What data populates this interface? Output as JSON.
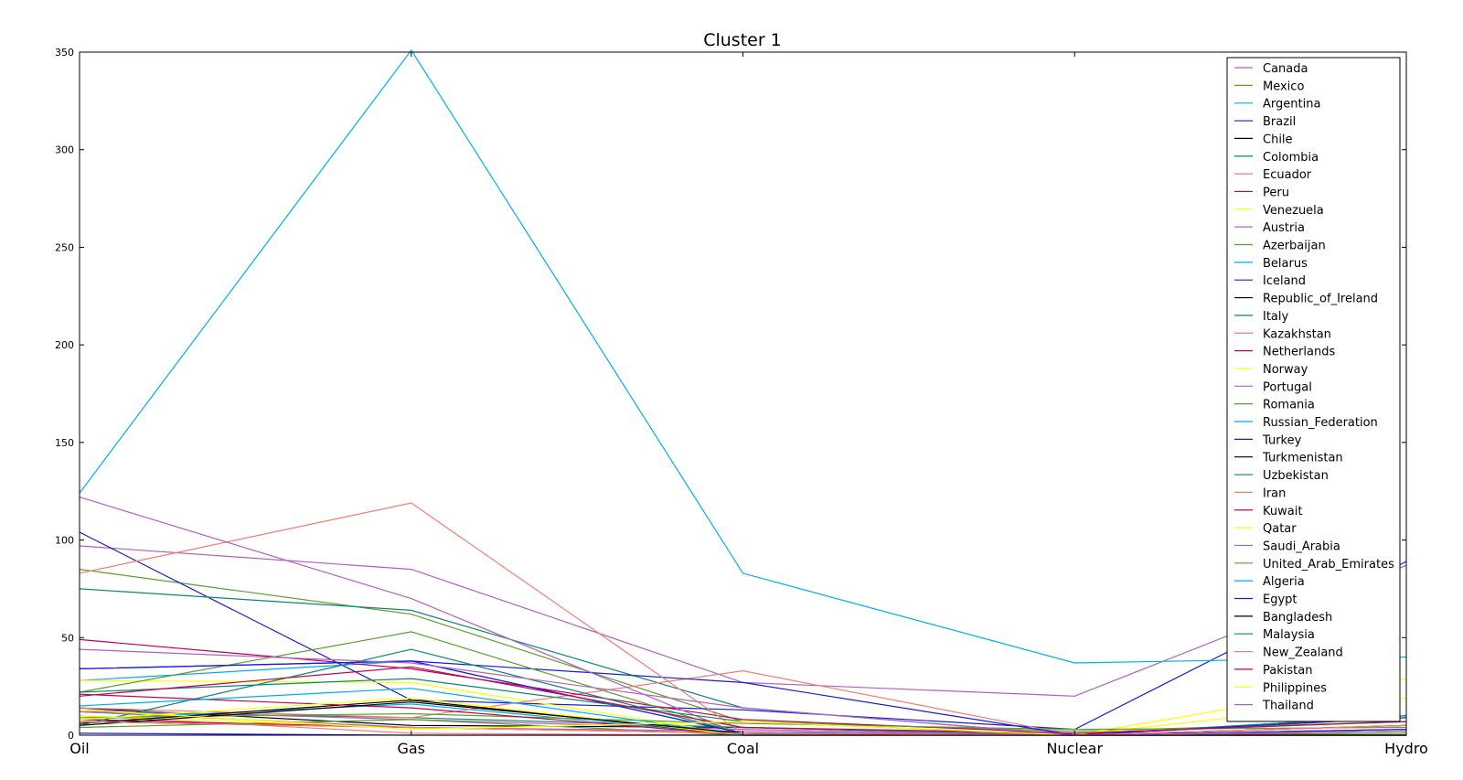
{
  "chart_data": {
    "type": "line",
    "title": "Cluster 1",
    "categories": [
      "Oil",
      "Gas",
      "Coal",
      "Nuclear",
      "Hydro"
    ],
    "ylim": [
      0,
      350
    ],
    "yticks": [
      0,
      50,
      100,
      150,
      200,
      250,
      300,
      350
    ],
    "grid": false,
    "legend_position": "top-right",
    "series": [
      {
        "name": "Canada",
        "color": "#b160c0",
        "values": [
          97,
          85,
          27,
          20,
          87
        ]
      },
      {
        "name": "Mexico",
        "color": "#5aa02c",
        "values": [
          85,
          62,
          7,
          2,
          7
        ]
      },
      {
        "name": "Argentina",
        "color": "#00aeef",
        "values": [
          28,
          38,
          1,
          1,
          7
        ]
      },
      {
        "name": "Brazil",
        "color": "#1a1adb",
        "values": [
          104,
          18,
          13,
          3,
          89
        ]
      },
      {
        "name": "Chile",
        "color": "#000000",
        "values": [
          14,
          5,
          4,
          0,
          5
        ]
      },
      {
        "name": "Colombia",
        "color": "#0c8573",
        "values": [
          12,
          9,
          4,
          0,
          10
        ]
      },
      {
        "name": "Ecuador",
        "color": "#f77b72",
        "values": [
          10,
          1,
          0,
          0,
          3
        ]
      },
      {
        "name": "Peru",
        "color": "#c6004f",
        "values": [
          8,
          4,
          1,
          0,
          5
        ]
      },
      {
        "name": "Venezuela",
        "color": "#ffff00",
        "values": [
          28,
          27,
          0,
          0,
          19
        ]
      },
      {
        "name": "Austria",
        "color": "#b160c0",
        "values": [
          13,
          8,
          3,
          0,
          9
        ]
      },
      {
        "name": "Azerbaijan",
        "color": "#5aa02c",
        "values": [
          4,
          8,
          0,
          0,
          1
        ]
      },
      {
        "name": "Belarus",
        "color": "#00aeef",
        "values": [
          8,
          16,
          0,
          0,
          0
        ]
      },
      {
        "name": "Iceland",
        "color": "#1a1adb",
        "values": [
          1,
          0,
          0,
          0,
          3
        ]
      },
      {
        "name": "Republic_of_Ireland",
        "color": "#000000",
        "values": [
          7,
          4,
          1,
          0,
          0
        ]
      },
      {
        "name": "Italy",
        "color": "#0c8573",
        "values": [
          75,
          64,
          14,
          0,
          10
        ]
      },
      {
        "name": "Kazakhstan",
        "color": "#f77b72",
        "values": [
          14,
          9,
          33,
          0,
          2
        ]
      },
      {
        "name": "Netherlands",
        "color": "#c6004f",
        "values": [
          49,
          34,
          8,
          1,
          0
        ]
      },
      {
        "name": "Norway",
        "color": "#ffff00",
        "values": [
          10,
          4,
          1,
          0,
          29
        ]
      },
      {
        "name": "Portugal",
        "color": "#b160c0",
        "values": [
          12,
          4,
          2,
          0,
          3
        ]
      },
      {
        "name": "Romania",
        "color": "#5aa02c",
        "values": [
          9,
          11,
          6,
          3,
          4
        ]
      },
      {
        "name": "Russian_Federation",
        "color": "#00aeef",
        "values": [
          124,
          351,
          83,
          37,
          40
        ]
      },
      {
        "name": "Turkey",
        "color": "#1a1adb",
        "values": [
          34,
          38,
          27,
          0,
          9
        ]
      },
      {
        "name": "Turkmenistan",
        "color": "#000000",
        "values": [
          6,
          18,
          0,
          0,
          0
        ]
      },
      {
        "name": "Uzbekistan",
        "color": "#0c8573",
        "values": [
          5,
          44,
          1,
          0,
          2
        ]
      },
      {
        "name": "Iran",
        "color": "#f77b72",
        "values": [
          83,
          119,
          1,
          0,
          3
        ]
      },
      {
        "name": "Kuwait",
        "color": "#c6004f",
        "values": [
          21,
          14,
          0,
          0,
          0
        ]
      },
      {
        "name": "Qatar",
        "color": "#ffff00",
        "values": [
          8,
          19,
          0,
          0,
          0
        ]
      },
      {
        "name": "Saudi_Arabia",
        "color": "#b160c0",
        "values": [
          122,
          70,
          0,
          0,
          0
        ]
      },
      {
        "name": "United_Arab_Emirates",
        "color": "#5aa02c",
        "values": [
          22,
          53,
          1,
          0,
          0
        ]
      },
      {
        "name": "Algeria",
        "color": "#00aeef",
        "values": [
          15,
          24,
          0,
          0,
          0
        ]
      },
      {
        "name": "Egypt",
        "color": "#1a1adb",
        "values": [
          34,
          38,
          1,
          0,
          3
        ]
      },
      {
        "name": "Bangladesh",
        "color": "#000000",
        "values": [
          5,
          17,
          1,
          0,
          0
        ]
      },
      {
        "name": "Malaysia",
        "color": "#0c8573",
        "values": [
          22,
          29,
          7,
          0,
          2
        ]
      },
      {
        "name": "New_Zealand",
        "color": "#f77b72",
        "values": [
          7,
          4,
          1,
          0,
          5
        ]
      },
      {
        "name": "Pakistan",
        "color": "#c6004f",
        "values": [
          20,
          35,
          4,
          1,
          7
        ]
      },
      {
        "name": "Philippines",
        "color": "#ffff00",
        "values": [
          13,
          3,
          7,
          0,
          2
        ]
      },
      {
        "name": "Thailand",
        "color": "#b160c0",
        "values": [
          44,
          37,
          14,
          0,
          2
        ]
      }
    ]
  }
}
